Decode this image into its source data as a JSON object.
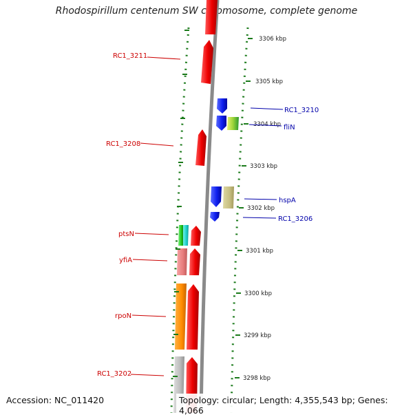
{
  "title": "Rhodospirillum centenum SW chromosome, complete genome",
  "footer": {
    "accession": "Accession: NC_011420",
    "topology": "Topology: circular; Length: 4,355,543 bp; Genes: 4,066"
  },
  "colors": {
    "forward_label": "#cc0000",
    "reverse_label": "#0000aa",
    "backbone": "#888888",
    "tick": "#1a7a1a"
  },
  "scale_ticks": [
    "3306 kbp",
    "3305 kbp",
    "3304 kbp",
    "3303 kbp",
    "3302 kbp",
    "3301 kbp",
    "3300 kbp",
    "3299 kbp",
    "3298 kbp"
  ],
  "gene_labels": [
    {
      "text": "RC1_3211",
      "strand": "forward"
    },
    {
      "text": "RC1_3208",
      "strand": "forward"
    },
    {
      "text": "ptsN",
      "strand": "forward"
    },
    {
      "text": "yfiA",
      "strand": "forward"
    },
    {
      "text": "rpoN",
      "strand": "forward"
    },
    {
      "text": "RC1_3202",
      "strand": "forward"
    },
    {
      "text": "RC1_3210",
      "strand": "reverse"
    },
    {
      "text": "fliN",
      "strand": "reverse"
    },
    {
      "text": "hspA",
      "strand": "reverse"
    },
    {
      "text": "RC1_3206",
      "strand": "reverse"
    }
  ]
}
